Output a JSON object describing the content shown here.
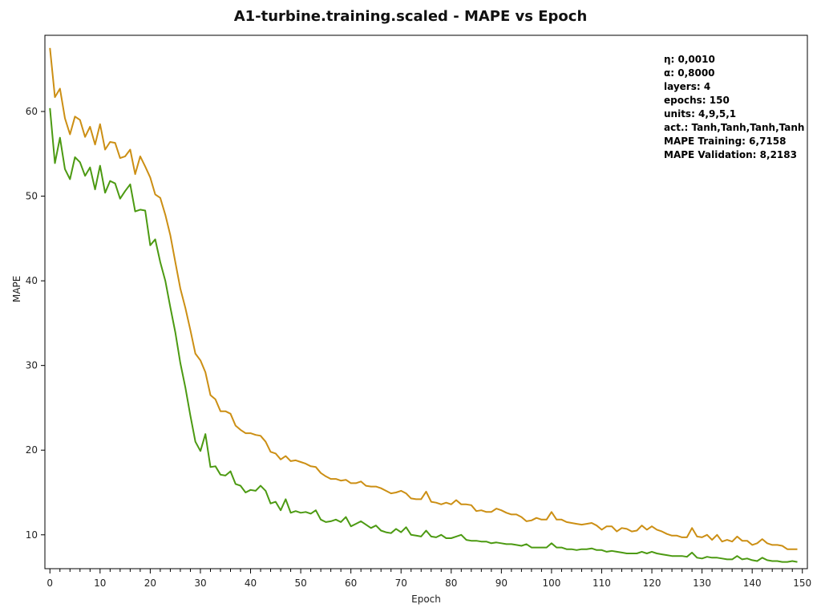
{
  "chart_data": {
    "type": "line",
    "title": "A1-turbine.training.scaled - MAPE vs Epoch",
    "xlabel": "Epoch",
    "ylabel": "MAPE",
    "xlim": [
      -1,
      151
    ],
    "ylim": [
      6,
      69
    ],
    "xticks": [
      0,
      10,
      20,
      30,
      40,
      50,
      60,
      70,
      80,
      90,
      100,
      110,
      120,
      130,
      140,
      150
    ],
    "yticks": [
      10,
      20,
      30,
      40,
      50,
      60
    ],
    "grid": false,
    "legend": "none",
    "series": [
      {
        "color": "#cc8f14",
        "values": [
          67.5,
          61.7,
          62.7,
          59.2,
          57.3,
          59.4,
          59.0,
          57.0,
          58.2,
          56.1,
          58.5,
          55.5,
          56.4,
          56.3,
          54.5,
          54.7,
          55.5,
          52.6,
          54.7,
          53.5,
          52.2,
          50.2,
          49.8,
          47.8,
          45.4,
          42.2,
          39.1,
          36.8,
          34.2,
          31.4,
          30.6,
          29.2,
          26.5,
          26.0,
          24.6,
          24.6,
          24.3,
          22.9,
          22.4,
          22.0,
          22.0,
          21.8,
          21.7,
          21.0,
          19.8,
          19.6,
          18.9,
          19.3,
          18.7,
          18.8,
          18.6,
          18.4,
          18.1,
          18.0,
          17.3,
          16.9,
          16.6,
          16.6,
          16.4,
          16.5,
          16.1,
          16.1,
          16.3,
          15.8,
          15.7,
          15.7,
          15.5,
          15.2,
          14.9,
          15.0,
          15.2,
          14.9,
          14.3,
          14.2,
          14.2,
          15.1,
          13.9,
          13.8,
          13.6,
          13.8,
          13.6,
          14.1,
          13.6,
          13.6,
          13.5,
          12.8,
          12.9,
          12.7,
          12.7,
          13.1,
          12.9,
          12.6,
          12.4,
          12.4,
          12.1,
          11.6,
          11.7,
          12.0,
          11.8,
          11.8,
          12.7,
          11.8,
          11.8,
          11.5,
          11.4,
          11.3,
          11.2,
          11.3,
          11.4,
          11.1,
          10.6,
          11.0,
          11.0,
          10.4,
          10.8,
          10.7,
          10.4,
          10.5,
          11.1,
          10.6,
          11.0,
          10.6,
          10.4,
          10.1,
          9.9,
          9.9,
          9.7,
          9.7,
          10.8,
          9.8,
          9.7,
          10.0,
          9.4,
          10.0,
          9.2,
          9.4,
          9.2,
          9.8,
          9.3,
          9.3,
          8.8,
          9.0,
          9.5,
          9.0,
          8.8,
          8.8,
          8.7,
          8.3,
          8.3,
          8.3
        ]
      },
      {
        "color": "#4c9a12",
        "values": [
          60.4,
          53.9,
          56.9,
          53.2,
          52.0,
          54.6,
          54.0,
          52.4,
          53.4,
          50.8,
          53.6,
          50.4,
          51.8,
          51.5,
          49.7,
          50.6,
          51.4,
          48.2,
          48.4,
          48.3,
          44.2,
          44.9,
          42.2,
          40.0,
          36.9,
          33.9,
          30.3,
          27.4,
          24.1,
          21.0,
          19.9,
          21.9,
          18.0,
          18.1,
          17.1,
          17.0,
          17.5,
          16.0,
          15.8,
          15.0,
          15.3,
          15.2,
          15.8,
          15.2,
          13.7,
          13.9,
          12.9,
          14.2,
          12.6,
          12.8,
          12.6,
          12.7,
          12.5,
          12.9,
          11.8,
          11.5,
          11.6,
          11.8,
          11.5,
          12.1,
          11.0,
          11.3,
          11.6,
          11.2,
          10.8,
          11.1,
          10.5,
          10.3,
          10.2,
          10.7,
          10.3,
          10.9,
          10.0,
          9.9,
          9.8,
          10.5,
          9.8,
          9.7,
          10.0,
          9.6,
          9.6,
          9.8,
          10.0,
          9.4,
          9.3,
          9.3,
          9.2,
          9.2,
          9.0,
          9.1,
          9.0,
          8.9,
          8.9,
          8.8,
          8.7,
          8.9,
          8.5,
          8.5,
          8.5,
          8.5,
          9.0,
          8.5,
          8.5,
          8.3,
          8.3,
          8.2,
          8.3,
          8.3,
          8.4,
          8.2,
          8.2,
          8.0,
          8.1,
          8.0,
          7.9,
          7.8,
          7.8,
          7.8,
          8.0,
          7.8,
          8.0,
          7.8,
          7.7,
          7.6,
          7.5,
          7.5,
          7.5,
          7.4,
          7.9,
          7.3,
          7.2,
          7.4,
          7.3,
          7.3,
          7.2,
          7.1,
          7.1,
          7.5,
          7.1,
          7.2,
          7.0,
          6.9,
          7.3,
          7.0,
          6.9,
          6.9,
          6.8,
          6.8,
          6.9,
          6.8
        ]
      }
    ]
  },
  "params": [
    "η:  0,0010",
    "α:  0,8000",
    "layers: 4",
    "epochs: 150",
    "units: 4,9,5,1",
    "act.: Tanh,Tanh,Tanh,Tanh",
    "MAPE Training: 6,7158",
    "MAPE Validation: 8,2183"
  ]
}
